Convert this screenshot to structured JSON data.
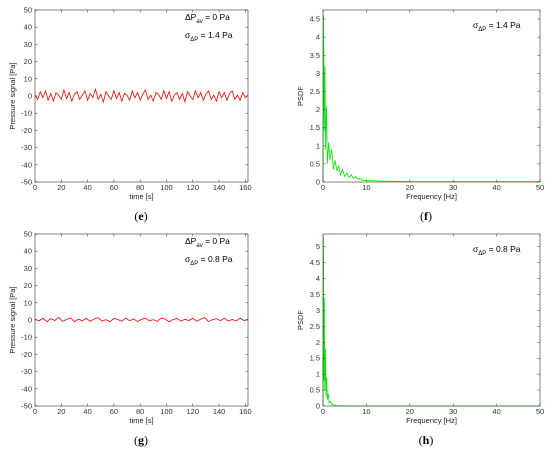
{
  "colors": {
    "pressure_line": "#ff0000",
    "psdf_line": "#00ee00",
    "axis": "#333333"
  },
  "panel_labels": {
    "e": [
      "(",
      "e",
      ")"
    ],
    "f": [
      "(",
      "f",
      ")"
    ],
    "g": [
      "(",
      "g",
      ")"
    ],
    "h": [
      "(",
      "h",
      ")"
    ]
  },
  "annotations": {
    "e": {
      "dp_main": "ΔP",
      "dp_sub": "av",
      "dp_val": " = 0 Pa",
      "sig_main": "σ",
      "sig_sub": "ΔP",
      "sig_val": " = 1.4 Pa"
    },
    "f": {
      "sig_main": "σ",
      "sig_sub": "ΔP",
      "sig_val": " = 1.4 Pa"
    },
    "g": {
      "dp_main": "ΔP",
      "dp_sub": "av",
      "dp_val": " = 0 Pa",
      "sig_main": "σ",
      "sig_sub": "ΔP",
      "sig_val": " = 0.8 Pa"
    },
    "h": {
      "sig_main": "σ",
      "sig_sub": "ΔP",
      "sig_val": " = 0.8 Pa"
    }
  },
  "chart_data": [
    {
      "id": "e",
      "type": "line",
      "xlabel": "time [s]",
      "ylabel": "Pressure signal [Pa]",
      "xlim": [
        0,
        162
      ],
      "ylim": [
        -50,
        50
      ],
      "xticks": [
        0,
        20,
        40,
        60,
        80,
        100,
        120,
        140,
        160
      ],
      "yticks": [
        -50,
        -40,
        -30,
        -20,
        -10,
        0,
        10,
        20,
        30,
        40,
        50
      ],
      "grid": false,
      "series": [
        {
          "color": "#ff0000",
          "x": [
            0,
            2,
            4,
            6,
            8,
            10,
            12,
            14,
            16,
            18,
            20,
            22,
            24,
            26,
            28,
            30,
            32,
            34,
            36,
            38,
            40,
            42,
            44,
            46,
            48,
            50,
            52,
            54,
            56,
            58,
            60,
            62,
            64,
            66,
            68,
            70,
            72,
            74,
            76,
            78,
            80,
            82,
            84,
            86,
            88,
            90,
            92,
            94,
            96,
            98,
            100,
            102,
            104,
            106,
            108,
            110,
            112,
            114,
            116,
            118,
            120,
            122,
            124,
            126,
            128,
            130,
            132,
            134,
            136,
            138,
            140,
            142,
            144,
            146,
            148,
            150,
            152,
            154,
            156,
            158,
            160,
            162
          ],
          "y": [
            0.5,
            -2.0,
            2.5,
            -1.0,
            3.0,
            -2.5,
            1.5,
            -3.0,
            2.0,
            0.5,
            -2.0,
            3.5,
            -1.5,
            2.0,
            -3.0,
            1.0,
            2.5,
            -2.0,
            0.5,
            3.0,
            -2.5,
            1.5,
            -1.0,
            4.0,
            -2.0,
            1.0,
            -3.5,
            2.5,
            0.0,
            -2.0,
            3.0,
            -1.5,
            2.0,
            -3.0,
            1.5,
            0.5,
            -2.5,
            3.0,
            -1.0,
            2.0,
            -2.5,
            1.0,
            3.5,
            -2.0,
            0.5,
            -3.0,
            2.0,
            1.0,
            -2.0,
            3.0,
            -1.5,
            2.5,
            -3.0,
            0.5,
            2.0,
            -2.0,
            1.5,
            -3.5,
            2.5,
            0.0,
            -2.0,
            3.0,
            -1.0,
            2.0,
            -2.5,
            1.0,
            3.0,
            -2.0,
            0.5,
            -3.0,
            2.5,
            -1.0,
            2.0,
            -2.5,
            1.5,
            3.0,
            -2.0,
            0.5,
            -2.5,
            2.0,
            -1.0,
            0.5
          ]
        }
      ]
    },
    {
      "id": "f",
      "type": "line",
      "xlabel": "Frequency [Hz]",
      "ylabel": "PSDF",
      "xlim": [
        0,
        50
      ],
      "ylim": [
        0,
        4.75
      ],
      "xticks": [
        0,
        10,
        20,
        30,
        40,
        50
      ],
      "yticks": [
        0,
        0.5,
        1,
        1.5,
        2,
        2.5,
        3,
        3.5,
        4,
        4.5
      ],
      "grid": false,
      "series": [
        {
          "color": "#00ee00",
          "x": [
            0,
            0.15,
            0.3,
            0.45,
            0.6,
            0.8,
            1.0,
            1.3,
            1.6,
            2.0,
            2.4,
            2.8,
            3.2,
            3.6,
            4.0,
            4.5,
            5.0,
            5.5,
            6.0,
            6.5,
            7.0,
            7.5,
            8.0,
            8.5,
            9.0,
            10,
            12,
            15,
            20,
            30,
            40,
            50
          ],
          "y": [
            0,
            4.6,
            1.4,
            3.2,
            0.9,
            2.1,
            0.5,
            1.1,
            0.6,
            0.9,
            0.35,
            0.6,
            0.3,
            0.45,
            0.2,
            0.35,
            0.15,
            0.25,
            0.12,
            0.2,
            0.1,
            0.15,
            0.08,
            0.1,
            0.05,
            0.04,
            0.03,
            0.02,
            0.01,
            0.01,
            0.01,
            0.01
          ]
        }
      ]
    },
    {
      "id": "g",
      "type": "line",
      "xlabel": "time [s]",
      "ylabel": "Pressure signal [Pa]",
      "xlim": [
        0,
        162
      ],
      "ylim": [
        -50,
        50
      ],
      "xticks": [
        0,
        20,
        40,
        60,
        80,
        100,
        120,
        140,
        160
      ],
      "yticks": [
        -50,
        -40,
        -30,
        -20,
        -10,
        0,
        10,
        20,
        30,
        40,
        50
      ],
      "grid": false,
      "series": [
        {
          "color": "#ff0000",
          "x": [
            0,
            3,
            6,
            9,
            12,
            15,
            18,
            21,
            24,
            27,
            30,
            33,
            36,
            39,
            42,
            45,
            48,
            51,
            54,
            57,
            60,
            63,
            66,
            69,
            72,
            75,
            78,
            81,
            84,
            87,
            90,
            93,
            96,
            99,
            102,
            105,
            108,
            111,
            114,
            117,
            120,
            123,
            126,
            129,
            132,
            135,
            138,
            141,
            144,
            147,
            150,
            153,
            156,
            159,
            162
          ],
          "y": [
            0.5,
            -0.5,
            1.0,
            -1.0,
            0.8,
            -0.3,
            1.5,
            -0.8,
            0.3,
            1.2,
            -1.0,
            0.5,
            -0.5,
            1.0,
            -0.8,
            0.6,
            1.3,
            -0.6,
            0.2,
            -1.0,
            0.9,
            0.3,
            -0.7,
            1.1,
            -0.4,
            0.6,
            -0.9,
            0.4,
            1.0,
            -0.5,
            0.2,
            -0.8,
            1.2,
            0.5,
            -1.0,
            0.3,
            0.9,
            -0.6,
            0.4,
            -0.3,
            1.0,
            -0.8,
            0.5,
            1.4,
            -0.9,
            0.2,
            0.8,
            -0.4,
            1.1,
            -0.7,
            0.3,
            -0.5,
            1.0,
            -0.3,
            0.4
          ]
        }
      ]
    },
    {
      "id": "h",
      "type": "line",
      "xlabel": "Frequency [Hz]",
      "ylabel": "PSDF",
      "xlim": [
        0,
        50
      ],
      "ylim": [
        0,
        5.4
      ],
      "xticks": [
        0,
        10,
        20,
        30,
        40,
        50
      ],
      "yticks": [
        0,
        0.5,
        1,
        1.5,
        2,
        2.5,
        3,
        3.5,
        4,
        4.5,
        5
      ],
      "grid": false,
      "series": [
        {
          "color": "#00ee00",
          "x": [
            0,
            0.1,
            0.2,
            0.3,
            0.4,
            0.55,
            0.7,
            0.85,
            1.0,
            1.2,
            1.4,
            1.7,
            2.0,
            2.5,
            3.0,
            5,
            10,
            20,
            30,
            40,
            50
          ],
          "y": [
            0,
            5.3,
            0.8,
            3.4,
            0.5,
            1.8,
            0.3,
            0.9,
            0.2,
            0.4,
            0.1,
            0.15,
            0.05,
            0.03,
            0.01,
            0.0,
            0.0,
            0.0,
            0.0,
            0.0,
            0.0
          ]
        }
      ]
    }
  ]
}
